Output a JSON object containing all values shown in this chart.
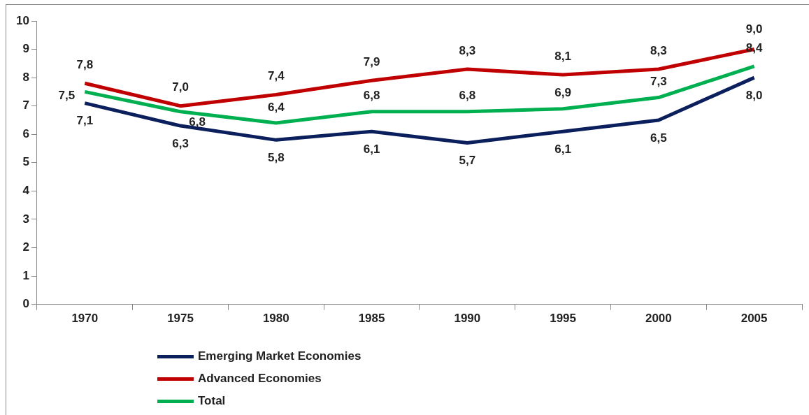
{
  "chart_data": {
    "type": "line",
    "categories": [
      "1970",
      "1975",
      "1980",
      "1985",
      "1990",
      "1995",
      "2000",
      "2005"
    ],
    "series": [
      {
        "name": "Emerging Market Economies",
        "color": "#0b1f5c",
        "values": [
          7.1,
          6.3,
          5.8,
          6.1,
          5.7,
          6.1,
          6.5,
          8.0
        ],
        "value_labels": [
          "7,1",
          "6,3",
          "5,8",
          "6,1",
          "5,7",
          "6,1",
          "6,5",
          "8,0"
        ]
      },
      {
        "name": "Advanced Economies",
        "color": "#c00000",
        "values": [
          7.8,
          7.0,
          7.4,
          7.9,
          8.3,
          8.1,
          8.3,
          9.0
        ],
        "value_labels": [
          "7,8",
          "7,0",
          "7,4",
          "7,9",
          "8,3",
          "8,1",
          "8,3",
          "9,0"
        ]
      },
      {
        "name": "Total",
        "color": "#00b050",
        "values": [
          7.5,
          6.8,
          6.4,
          6.8,
          6.8,
          6.9,
          7.3,
          8.4
        ],
        "value_labels": [
          "7,5",
          "6,8",
          "6,4",
          "6,8",
          "6,8",
          "6,9",
          "7,3",
          "8,4"
        ]
      }
    ],
    "ylim": [
      0,
      10
    ],
    "yticks": [
      0,
      1,
      2,
      3,
      4,
      5,
      6,
      7,
      8,
      9,
      10
    ],
    "grid": false,
    "legend": "bottom left",
    "marker": "none",
    "line_style": "solid"
  }
}
